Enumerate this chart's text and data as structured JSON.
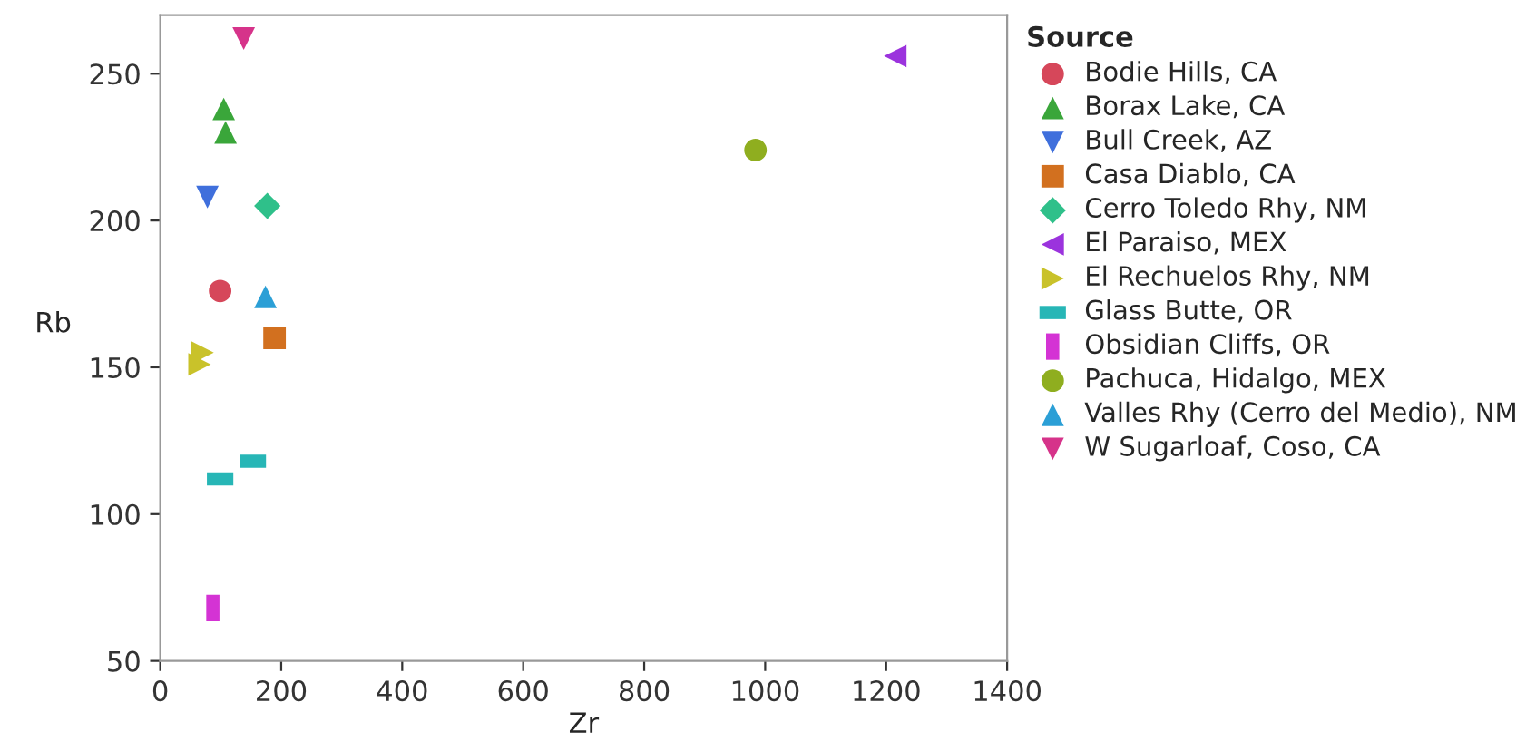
{
  "chart_data": {
    "type": "scatter",
    "xlabel": "Zr",
    "ylabel": "Rb",
    "legend_title": "Source",
    "legend": "right",
    "grid": false,
    "xlim": [
      0,
      1400
    ],
    "xticks": [
      0,
      200,
      400,
      600,
      800,
      1000,
      1200,
      1400
    ],
    "ylim": [
      50,
      270
    ],
    "yticks": [
      50,
      100,
      150,
      200,
      250
    ],
    "series": [
      {
        "name": "Bodie Hills, CA",
        "color": "#d6475a",
        "marker": "circle",
        "x": [
          99
        ],
        "values": [
          176
        ]
      },
      {
        "name": "Borax Lake, CA",
        "color": "#3aa63a",
        "marker": "triangle",
        "x": [
          105,
          108
        ],
        "values": [
          238,
          230
        ]
      },
      {
        "name": "Bull Creek, AZ",
        "color": "#3f6fdc",
        "marker": "triangle-down",
        "x": [
          78
        ],
        "values": [
          208
        ]
      },
      {
        "name": "Casa Diablo, CA",
        "color": "#d2701f",
        "marker": "square",
        "x": [
          189
        ],
        "values": [
          160
        ]
      },
      {
        "name": "Cerro Toledo Rhy, NM",
        "color": "#2fc08a",
        "marker": "diamond",
        "x": [
          177
        ],
        "values": [
          205
        ]
      },
      {
        "name": "El Paraiso, MEX",
        "color": "#9b33dd",
        "marker": "triangle-left",
        "x": [
          1215
        ],
        "values": [
          256
        ]
      },
      {
        "name": "El Rechuelos Rhy, NM",
        "color": "#c9c22a",
        "marker": "triangle-right",
        "x": [
          70,
          65
        ],
        "values": [
          155,
          151
        ]
      },
      {
        "name": "Glass Butte, OR",
        "color": "#27b6b6",
        "marker": "rect-wide",
        "x": [
          99,
          153
        ],
        "values": [
          112,
          118
        ]
      },
      {
        "name": "Obsidian Cliffs, OR",
        "color": "#d433d4",
        "marker": "rect-tall",
        "x": [
          87
        ],
        "values": [
          68
        ]
      },
      {
        "name": "Pachuca, Hidalgo, MEX",
        "color": "#8fae1f",
        "marker": "circle",
        "x": [
          984
        ],
        "values": [
          224
        ]
      },
      {
        "name": "Valles Rhy (Cerro del Medio), NM",
        "color": "#2b9fd6",
        "marker": "triangle",
        "x": [
          174
        ],
        "values": [
          174
        ]
      },
      {
        "name": "W Sugarloaf, Coso, CA",
        "color": "#d6338a",
        "marker": "triangle-down",
        "x": [
          138
        ],
        "values": [
          262
        ]
      }
    ]
  }
}
